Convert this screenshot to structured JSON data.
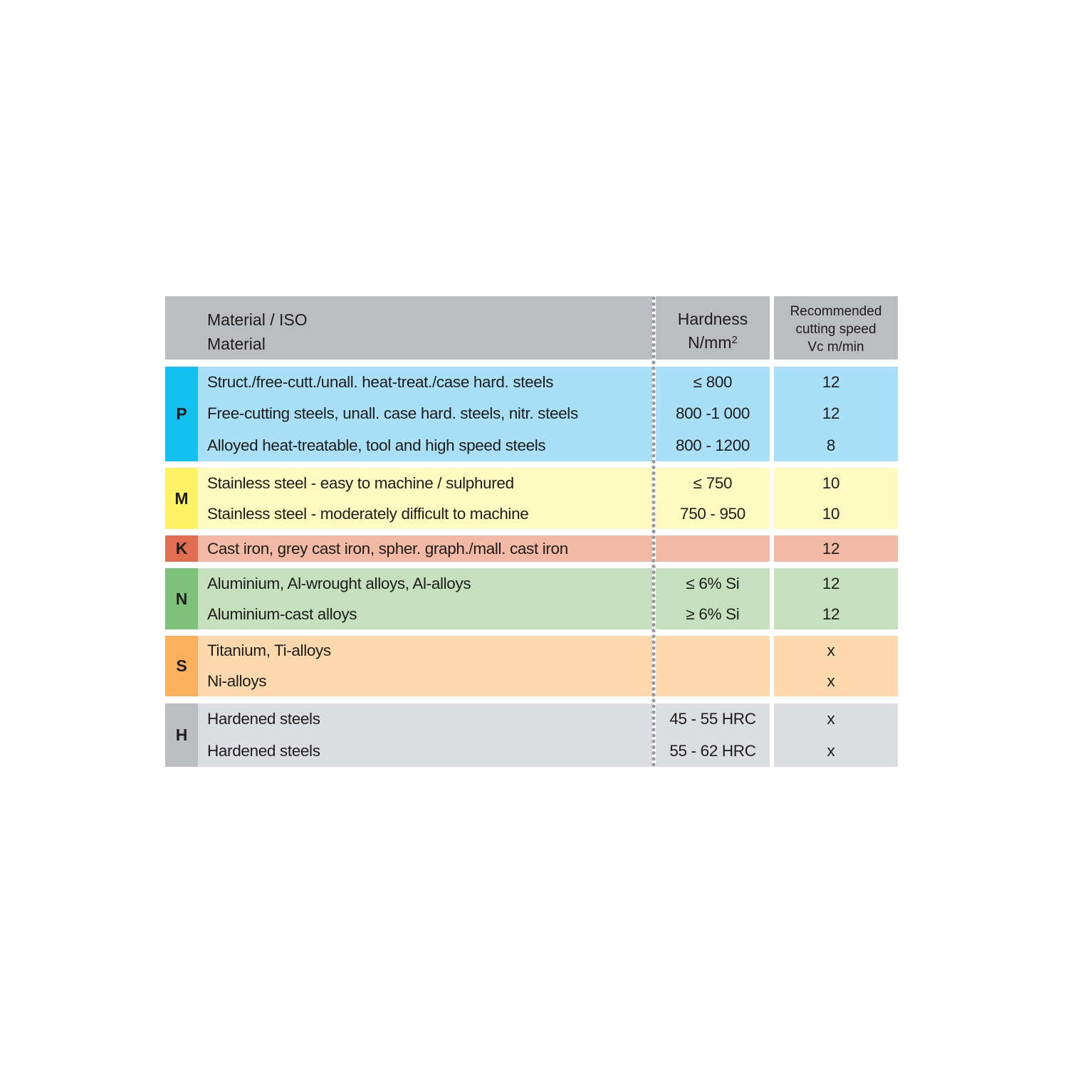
{
  "header": {
    "material_line1": "Material / ISO",
    "material_line2": "Material",
    "hardness_line1": "Hardness",
    "hardness_line2": "N/mm",
    "hardness_sup": "2",
    "speed_line1": "Recommended",
    "speed_line2": "cutting speed",
    "speed_line3": "Vc m/min"
  },
  "groups": [
    {
      "iso": "P",
      "color": "#13c0f0",
      "light": "#aadff8",
      "rows": [
        {
          "material": "Struct./free-cutt./unall. heat-treat./case hard. steels",
          "hardness": "≤ 800",
          "speed": "12"
        },
        {
          "material": "Free-cutting steels, unall. case hard. steels, nitr. steels",
          "hardness": "800 -1 000",
          "speed": "12"
        },
        {
          "material": "Alloyed heat-treatable, tool and high speed steels",
          "hardness": "800 - 1200",
          "speed": "8"
        }
      ]
    },
    {
      "iso": "M",
      "color": "#fff466",
      "light": "#fffac0",
      "rows": [
        {
          "material": "Stainless steel - easy to machine / sulphured",
          "hardness": "≤ 750",
          "speed": "10"
        },
        {
          "material": "Stainless steel - moderately difficult to machine",
          "hardness": "750 - 950",
          "speed": "10"
        }
      ]
    },
    {
      "iso": "K",
      "color": "#e06e50",
      "light": "#f2b9a5",
      "rows": [
        {
          "material": "Cast iron, grey cast iron, spher. graph./mall. cast iron",
          "hardness": "",
          "speed": "12"
        }
      ]
    },
    {
      "iso": "N",
      "color": "#7dc17a",
      "light": "#c6e0bd",
      "rows": [
        {
          "material": "Aluminium, Al-wrought alloys, Al-alloys",
          "hardness": "≤ 6% Si",
          "speed": "12"
        },
        {
          "material": "Aluminium-cast alloys",
          "hardness": "≥ 6% Si",
          "speed": "12"
        }
      ]
    },
    {
      "iso": "S",
      "color": "#fbb05e",
      "light": "#fed9ae",
      "rows": [
        {
          "material": "Titanium, Ti-alloys",
          "hardness": "",
          "speed": "x"
        },
        {
          "material": "Ni-alloys",
          "hardness": "",
          "speed": "x"
        }
      ]
    },
    {
      "iso": "H",
      "color": "#bcbdc1",
      "light": "#dcdde0",
      "rows": [
        {
          "material": "Hardened steels",
          "hardness": "45 - 55 HRC",
          "speed": "x"
        },
        {
          "material": "Hardened steels",
          "hardness": "55 - 62 HRC",
          "speed": "x"
        }
      ]
    }
  ],
  "header_color": "#bcbdc1"
}
